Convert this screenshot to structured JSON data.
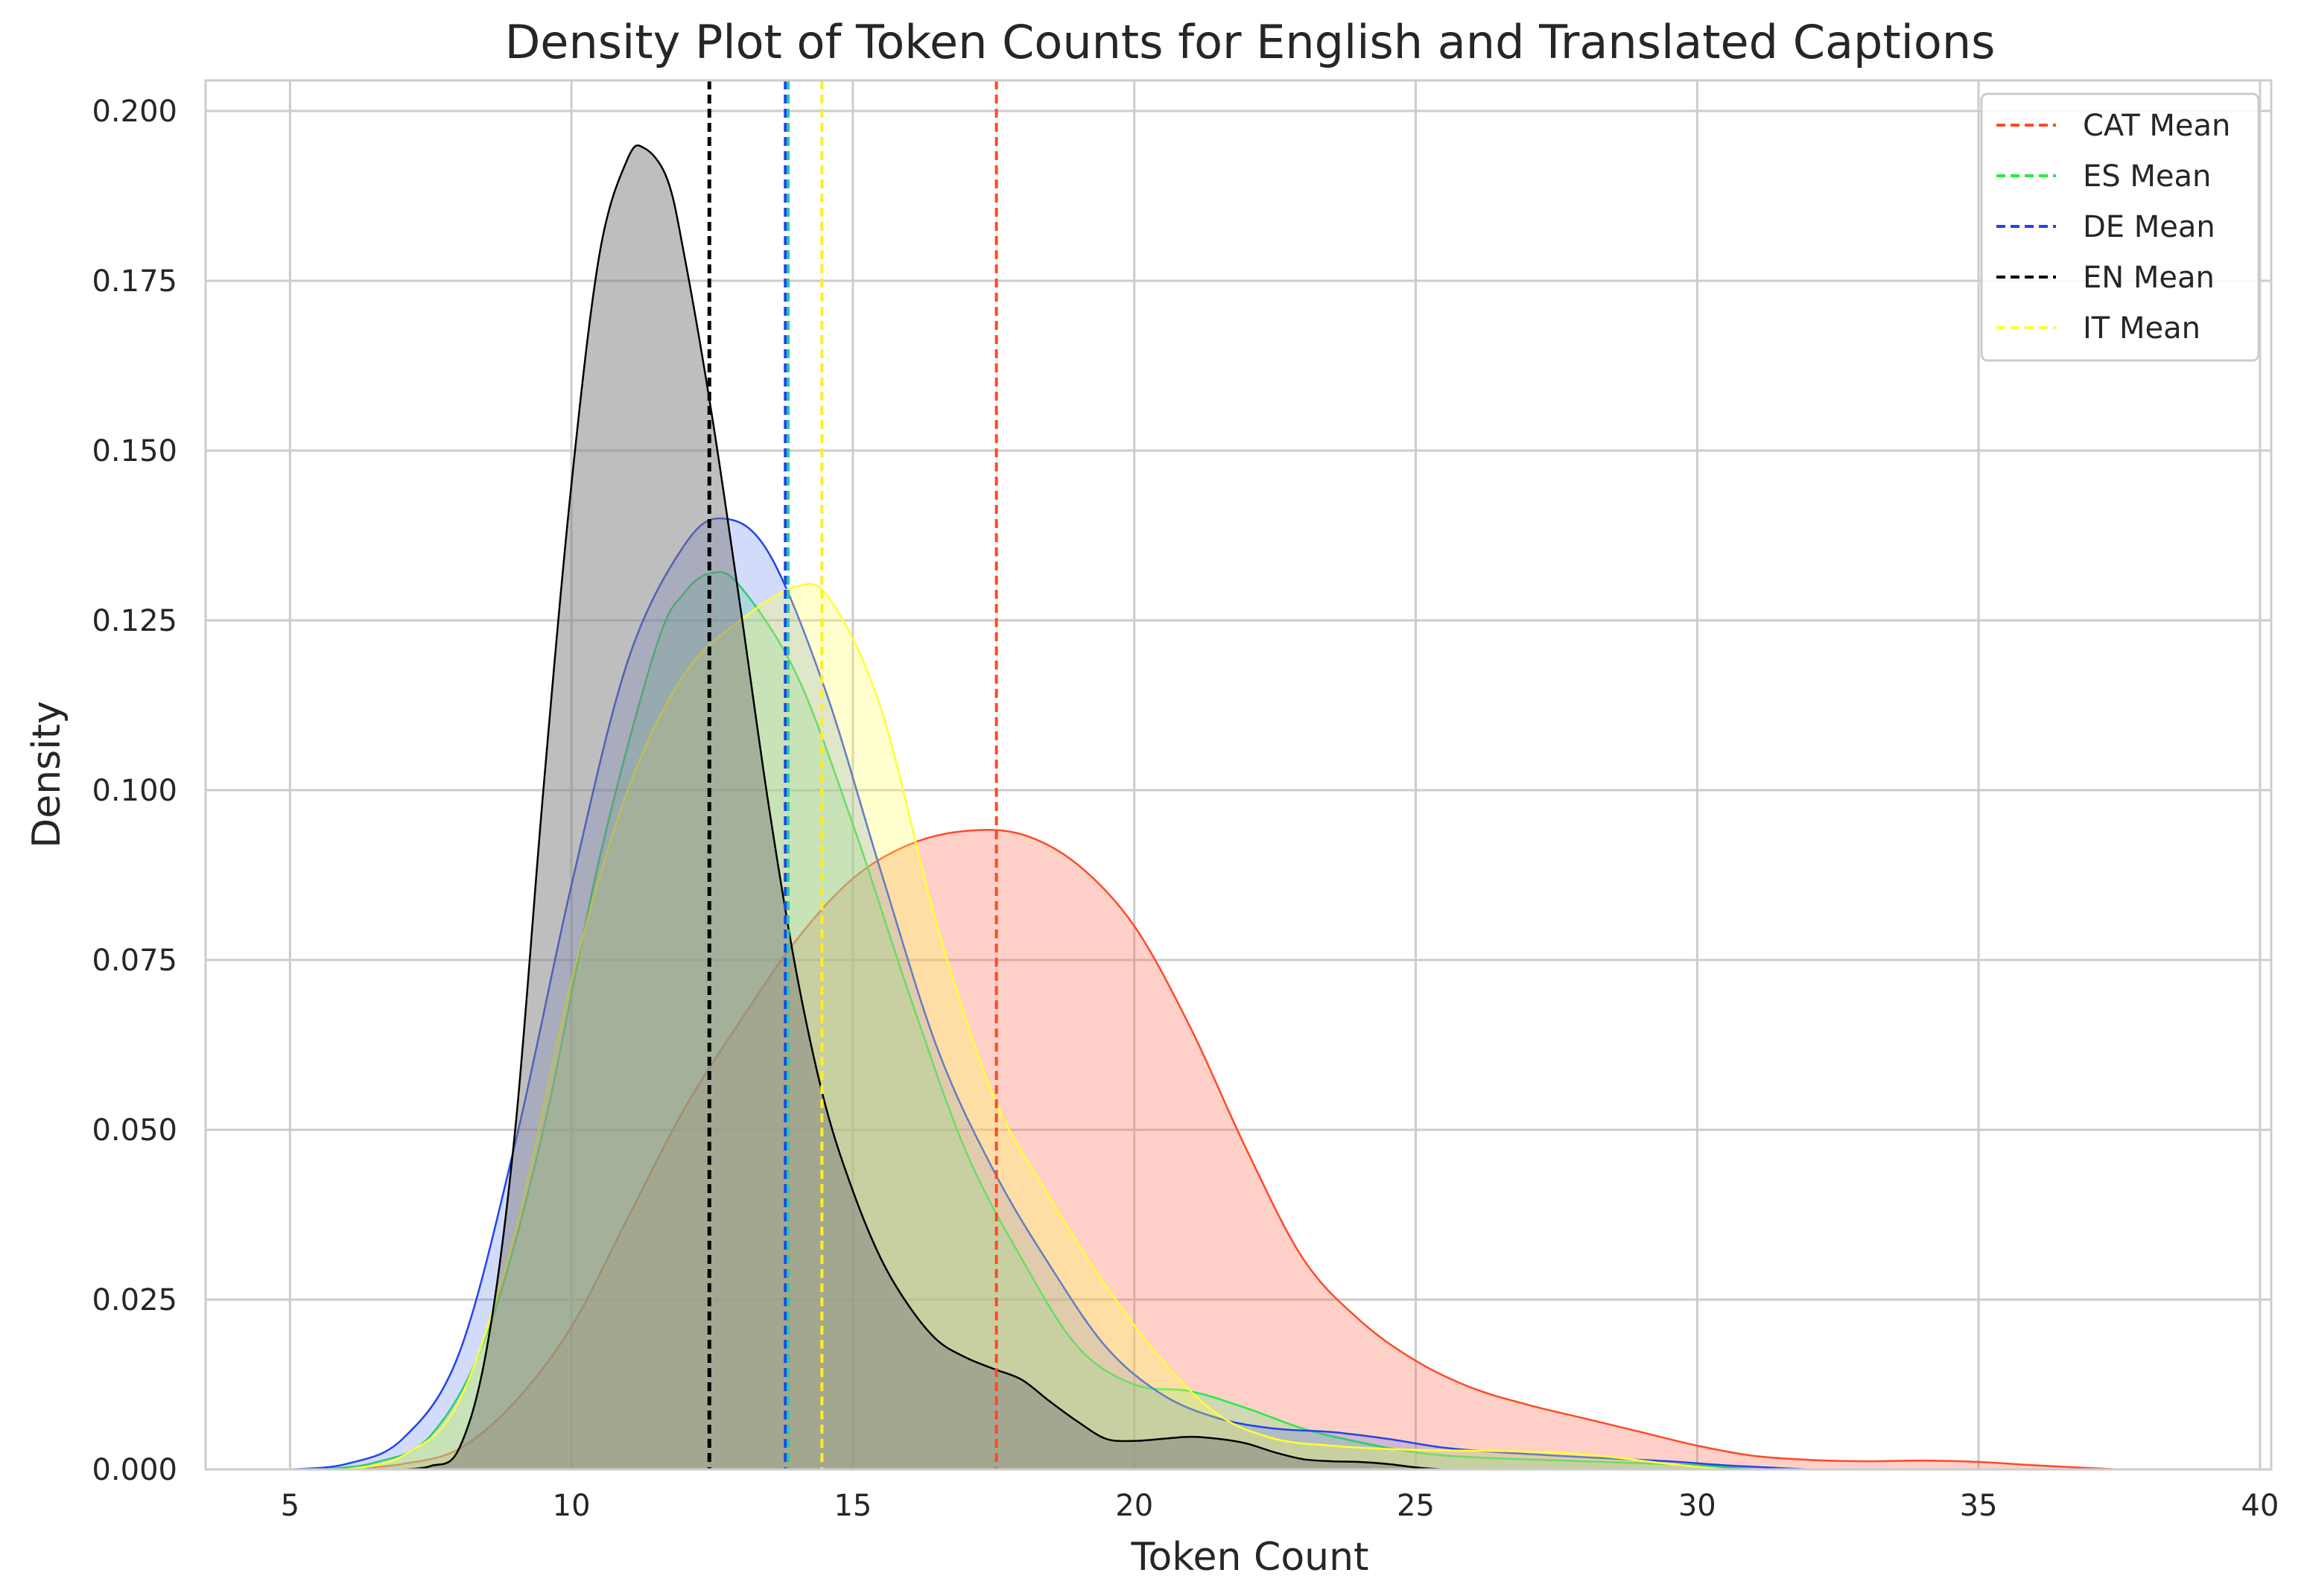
{
  "chart_data": {
    "type": "area",
    "title": "Density Plot of Token Counts for English and Translated Captions",
    "xlabel": "Token Count",
    "ylabel": "Density",
    "xlim": [
      3.5,
      40.2
    ],
    "ylim": [
      0,
      0.2045
    ],
    "x_ticks": [
      "5",
      "10",
      "15",
      "20",
      "25",
      "30",
      "35",
      "40"
    ],
    "x_tick_values": [
      5,
      10,
      15,
      20,
      25,
      30,
      35,
      40
    ],
    "y_ticks": [
      "0.000",
      "0.025",
      "0.050",
      "0.075",
      "0.100",
      "0.125",
      "0.150",
      "0.175",
      "0.200"
    ],
    "y_tick_values": [
      0,
      0.025,
      0.05,
      0.075,
      0.1,
      0.125,
      0.15,
      0.175,
      0.2
    ],
    "grid": true,
    "legend_position": "top-right",
    "legend": [
      {
        "label": "CAT Mean",
        "color": "#ff4a26"
      },
      {
        "label": "ES Mean",
        "color": "#22ee44"
      },
      {
        "label": "DE Mean",
        "color": "#2244ee"
      },
      {
        "label": "EN Mean",
        "color": "#000000"
      },
      {
        "label": "IT Mean",
        "color": "#ffff33"
      }
    ],
    "series": [
      {
        "key": "cat",
        "color": "#ff4a26",
        "fill": "rgba(255,110,85,0.32)",
        "points": [
          [
            6,
            0
          ],
          [
            7,
            0.0008
          ],
          [
            8,
            0.003
          ],
          [
            9,
            0.01
          ],
          [
            10,
            0.021
          ],
          [
            11,
            0.037
          ],
          [
            12,
            0.053
          ],
          [
            13,
            0.066
          ],
          [
            14,
            0.078
          ],
          [
            15,
            0.087
          ],
          [
            16,
            0.092
          ],
          [
            17,
            0.094
          ],
          [
            18,
            0.0935
          ],
          [
            19,
            0.089
          ],
          [
            20,
            0.08
          ],
          [
            21,
            0.065
          ],
          [
            22,
            0.047
          ],
          [
            23,
            0.031
          ],
          [
            24,
            0.022
          ],
          [
            25,
            0.016
          ],
          [
            26,
            0.012
          ],
          [
            27,
            0.0095
          ],
          [
            28,
            0.0075
          ],
          [
            29,
            0.0055
          ],
          [
            30,
            0.0035
          ],
          [
            31,
            0.002
          ],
          [
            32,
            0.0014
          ],
          [
            33,
            0.0012
          ],
          [
            34,
            0.0013
          ],
          [
            35,
            0.0011
          ],
          [
            36,
            0.0006
          ],
          [
            37,
            0.0002
          ],
          [
            37.5,
            0
          ]
        ]
      },
      {
        "key": "es",
        "color": "#22ee44",
        "fill": "rgba(80,235,120,0.26)",
        "points": [
          [
            5.5,
            0
          ],
          [
            6.5,
            0.001
          ],
          [
            7.5,
            0.005
          ],
          [
            8.5,
            0.02
          ],
          [
            9.5,
            0.05
          ],
          [
            10.5,
            0.09
          ],
          [
            11.5,
            0.121
          ],
          [
            12,
            0.129
          ],
          [
            12.5,
            0.132
          ],
          [
            13,
            0.13
          ],
          [
            14,
            0.117
          ],
          [
            15,
            0.095
          ],
          [
            16,
            0.07
          ],
          [
            17,
            0.047
          ],
          [
            18,
            0.031
          ],
          [
            19,
            0.018
          ],
          [
            20,
            0.0125
          ],
          [
            21,
            0.0115
          ],
          [
            22,
            0.009
          ],
          [
            23,
            0.006
          ],
          [
            24,
            0.004
          ],
          [
            25,
            0.0025
          ],
          [
            26,
            0.0018
          ],
          [
            28,
            0.0012
          ],
          [
            30,
            0.0006
          ],
          [
            31,
            0
          ]
        ]
      },
      {
        "key": "de",
        "color": "#2244ee",
        "fill": "rgba(70,105,240,0.24)",
        "points": [
          [
            5,
            0
          ],
          [
            6,
            0.0008
          ],
          [
            7,
            0.0045
          ],
          [
            8,
            0.017
          ],
          [
            9,
            0.048
          ],
          [
            10,
            0.086
          ],
          [
            11,
            0.119
          ],
          [
            12,
            0.136
          ],
          [
            12.7,
            0.14
          ],
          [
            13.5,
            0.135
          ],
          [
            14.5,
            0.115
          ],
          [
            15.5,
            0.088
          ],
          [
            16.5,
            0.062
          ],
          [
            17.5,
            0.044
          ],
          [
            18.5,
            0.03
          ],
          [
            19.5,
            0.018
          ],
          [
            20.5,
            0.011
          ],
          [
            21.5,
            0.0075
          ],
          [
            22.5,
            0.006
          ],
          [
            23.5,
            0.0055
          ],
          [
            24.5,
            0.0045
          ],
          [
            25.5,
            0.0032
          ],
          [
            26.5,
            0.0025
          ],
          [
            28,
            0.0018
          ],
          [
            29.5,
            0.0012
          ],
          [
            30.5,
            0.0006
          ],
          [
            32,
            0
          ]
        ]
      },
      {
        "key": "it",
        "color": "#ffff33",
        "fill": "rgba(255,255,90,0.30)",
        "points": [
          [
            6,
            0
          ],
          [
            7,
            0.002
          ],
          [
            8,
            0.01
          ],
          [
            9,
            0.035
          ],
          [
            10,
            0.072
          ],
          [
            11,
            0.1
          ],
          [
            12,
            0.117
          ],
          [
            13,
            0.125
          ],
          [
            14,
            0.13
          ],
          [
            14.6,
            0.128
          ],
          [
            15.5,
            0.112
          ],
          [
            16.5,
            0.08
          ],
          [
            17.5,
            0.055
          ],
          [
            18.5,
            0.04
          ],
          [
            19.5,
            0.027
          ],
          [
            20.5,
            0.016
          ],
          [
            21.5,
            0.008
          ],
          [
            22.5,
            0.0045
          ],
          [
            23.5,
            0.0035
          ],
          [
            24.5,
            0.003
          ],
          [
            25.5,
            0.0028
          ],
          [
            26.5,
            0.0027
          ],
          [
            27.5,
            0.0025
          ],
          [
            28.5,
            0.0018
          ],
          [
            29.5,
            0.0008
          ],
          [
            30.5,
            0
          ]
        ]
      },
      {
        "key": "en",
        "color": "#000000",
        "fill": "rgba(125,125,125,0.50)",
        "points": [
          [
            7,
            0
          ],
          [
            7.5,
            0.0005
          ],
          [
            8,
            0.003
          ],
          [
            8.5,
            0.018
          ],
          [
            9,
            0.05
          ],
          [
            9.5,
            0.1
          ],
          [
            10,
            0.145
          ],
          [
            10.5,
            0.179
          ],
          [
            11,
            0.193
          ],
          [
            11.3,
            0.1945
          ],
          [
            11.7,
            0.19
          ],
          [
            12,
            0.179
          ],
          [
            12.5,
            0.155
          ],
          [
            13,
            0.127
          ],
          [
            13.5,
            0.098
          ],
          [
            14,
            0.073
          ],
          [
            14.5,
            0.054
          ],
          [
            15,
            0.041
          ],
          [
            15.5,
            0.031
          ],
          [
            16,
            0.024
          ],
          [
            16.5,
            0.019
          ],
          [
            17,
            0.0165
          ],
          [
            17.5,
            0.0148
          ],
          [
            18,
            0.0132
          ],
          [
            18.5,
            0.01
          ],
          [
            19,
            0.007
          ],
          [
            19.5,
            0.0045
          ],
          [
            20,
            0.0042
          ],
          [
            20.5,
            0.0045
          ],
          [
            21,
            0.0048
          ],
          [
            21.5,
            0.0045
          ],
          [
            22,
            0.0038
          ],
          [
            22.5,
            0.0025
          ],
          [
            23,
            0.0015
          ],
          [
            23.5,
            0.0012
          ],
          [
            24,
            0.0011
          ],
          [
            24.5,
            0.0008
          ],
          [
            25,
            0.0003
          ],
          [
            25.5,
            0
          ]
        ]
      }
    ],
    "means": [
      {
        "key": "cat",
        "x": 17.55,
        "color": "#ff4a26",
        "width": 4,
        "dash": "12,7"
      },
      {
        "key": "en",
        "x": 12.45,
        "color": "#000000",
        "width": 5,
        "dash": "12,7"
      },
      {
        "key": "de",
        "x": 13.8,
        "color": "#2244ee",
        "width": 4,
        "dash": "12,7"
      },
      {
        "key": "es",
        "x": 13.85,
        "color": "#22cc99",
        "width": 4,
        "dash": "12,7"
      },
      {
        "key": "it",
        "x": 14.45,
        "color": "#ffee22",
        "width": 4,
        "dash": "12,7"
      }
    ]
  }
}
